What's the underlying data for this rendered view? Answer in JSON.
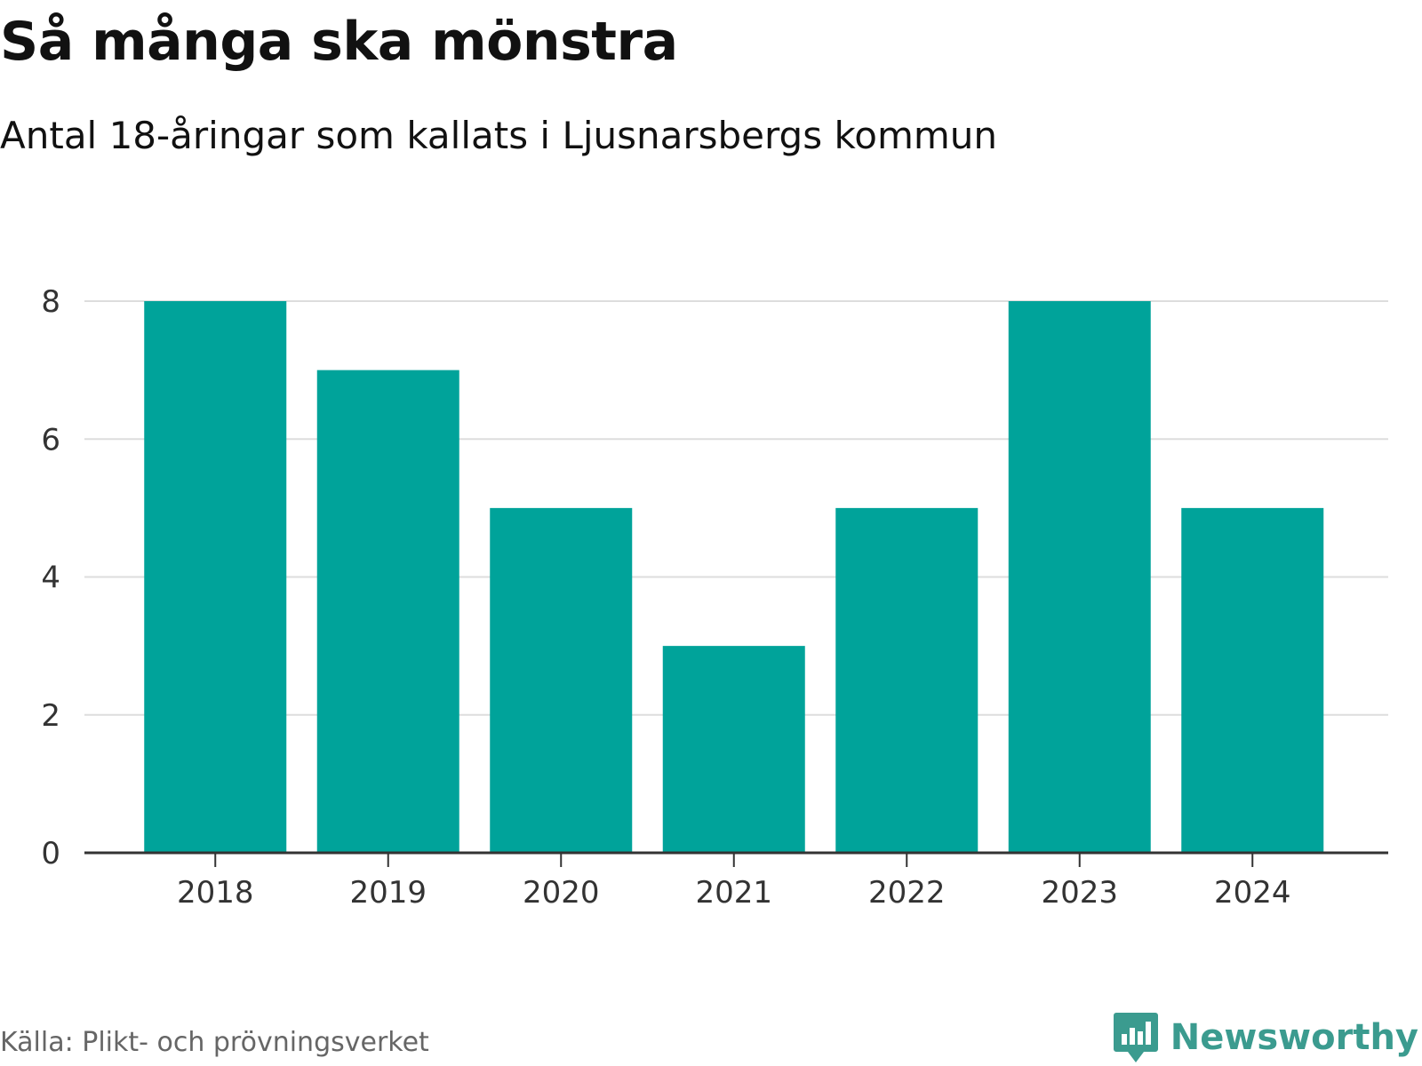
{
  "title": "Så många ska mönstra",
  "subtitle": "Antal 18-åringar som kallats i Ljusnarsbergs kommun",
  "source": "Källa: Plikt- och prövningsverket",
  "brand": {
    "name": "Newsworthy",
    "icon": "newsworthy-logo-icon",
    "color": "#3b9b8f"
  },
  "colors": {
    "bar": "#00a39a",
    "grid": "#dddddd",
    "axis": "#333333",
    "tick_text": "#333333"
  },
  "chart_data": {
    "type": "bar",
    "title": "Så många ska mönstra",
    "subtitle": "Antal 18-åringar som kallats i Ljusnarsbergs kommun",
    "categories": [
      "2018",
      "2019",
      "2020",
      "2021",
      "2022",
      "2023",
      "2024"
    ],
    "values": [
      8,
      7,
      5,
      3,
      5,
      8,
      5
    ],
    "xlabel": "",
    "ylabel": "",
    "ylim": [
      0,
      8
    ],
    "yticks": [
      0,
      2,
      4,
      6,
      8
    ],
    "grid": true,
    "legend": "none"
  }
}
